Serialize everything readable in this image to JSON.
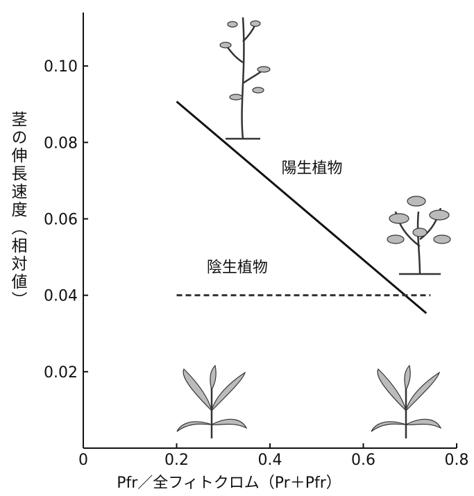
{
  "chart_data": {
    "type": "line",
    "y_label": "茎の伸長速度（相対値）",
    "x_label": "Pfr／全フィトクロム（Pr＋Pfr）",
    "xlim": [
      0,
      0.8
    ],
    "xticks": [
      0,
      0.2,
      0.4,
      0.6,
      0.8
    ],
    "ylim": [
      0,
      0.114
    ],
    "yticks": [
      0.02,
      0.04,
      0.06,
      {
        "value": 0.1,
        "label": "0.10"
      },
      0.08
    ],
    "series": [
      {
        "name": "陽生植物",
        "color": "#111111",
        "dash": false,
        "x": [
          0.2,
          0.735
        ],
        "values": [
          0.0907,
          0.0353
        ]
      },
      {
        "name": "陰生植物",
        "color": "#333333",
        "dash": true,
        "x": [
          0.2,
          0.744
        ],
        "values": [
          0.04,
          0.04
        ]
      }
    ]
  }
}
